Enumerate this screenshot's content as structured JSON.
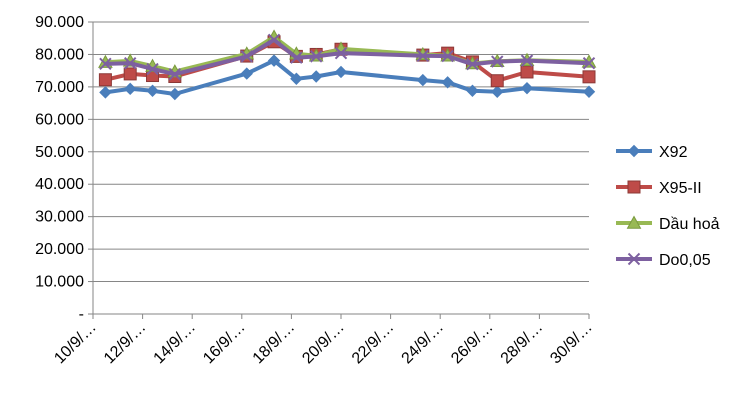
{
  "chart_data": {
    "type": "line",
    "title": "",
    "xlabel": "",
    "ylabel": "",
    "ylim": [
      0,
      90
    ],
    "grid": true,
    "legend_position": "right",
    "y_ticks": [
      {
        "value": 0,
        "label": "-"
      },
      {
        "value": 10,
        "label": "10.000"
      },
      {
        "value": 20,
        "label": "20.000"
      },
      {
        "value": 30,
        "label": "30.000"
      },
      {
        "value": 40,
        "label": "40.000"
      },
      {
        "value": 50,
        "label": "50.000"
      },
      {
        "value": 60,
        "label": "60.000"
      },
      {
        "value": 70,
        "label": "70.000"
      },
      {
        "value": 80,
        "label": "80.000"
      },
      {
        "value": 90,
        "label": "90.000"
      }
    ],
    "x_ticks": [
      {
        "day": 10,
        "label": "10/9/…"
      },
      {
        "day": 12,
        "label": "12/9/…"
      },
      {
        "day": 14,
        "label": "14/9/…"
      },
      {
        "day": 16,
        "label": "16/9/…"
      },
      {
        "day": 18,
        "label": "18/9/…"
      },
      {
        "day": 20,
        "label": "20/9/…"
      },
      {
        "day": 22,
        "label": "22/9/…"
      },
      {
        "day": 24,
        "label": "24/9/…"
      },
      {
        "day": 26,
        "label": "26/9/…"
      },
      {
        "day": 28,
        "label": "28/9/…"
      },
      {
        "day": 30,
        "label": "30/9/…"
      }
    ],
    "xlim": [
      10,
      30
    ],
    "x": [
      10.5,
      11.5,
      12.4,
      13.3,
      16.2,
      17.3,
      18.2,
      19.0,
      20.0,
      23.3,
      24.3,
      25.3,
      26.3,
      27.5,
      30.0
    ],
    "series": [
      {
        "name": "X92",
        "color": "#4A7EBB",
        "marker": "diamond",
        "values": [
          68.3,
          69.4,
          68.8,
          67.8,
          74.1,
          78.1,
          72.5,
          73.2,
          74.6,
          72.1,
          71.4,
          68.8,
          68.5,
          69.6,
          68.5
        ]
      },
      {
        "name": "X95-II",
        "color": "#BE4B48",
        "marker": "square",
        "values": [
          72.2,
          74.0,
          73.5,
          73.2,
          79.5,
          83.9,
          79.4,
          80.0,
          81.6,
          79.8,
          80.4,
          77.7,
          71.9,
          74.6,
          73.1
        ]
      },
      {
        "name": "Dầu hoả",
        "color": "#98B954",
        "marker": "triangle",
        "values": [
          77.6,
          78.0,
          76.4,
          74.7,
          80.2,
          85.4,
          80.2,
          79.6,
          81.7,
          80.0,
          79.6,
          77.2,
          77.9,
          78.2,
          77.7
        ]
      },
      {
        "name": "Do0,05",
        "color": "#7D60A0",
        "marker": "x",
        "values": [
          77.1,
          77.3,
          75.5,
          73.9,
          79.4,
          84.5,
          79.0,
          79.4,
          80.4,
          79.6,
          79.5,
          77.0,
          77.8,
          78.1,
          77.3
        ]
      }
    ]
  }
}
